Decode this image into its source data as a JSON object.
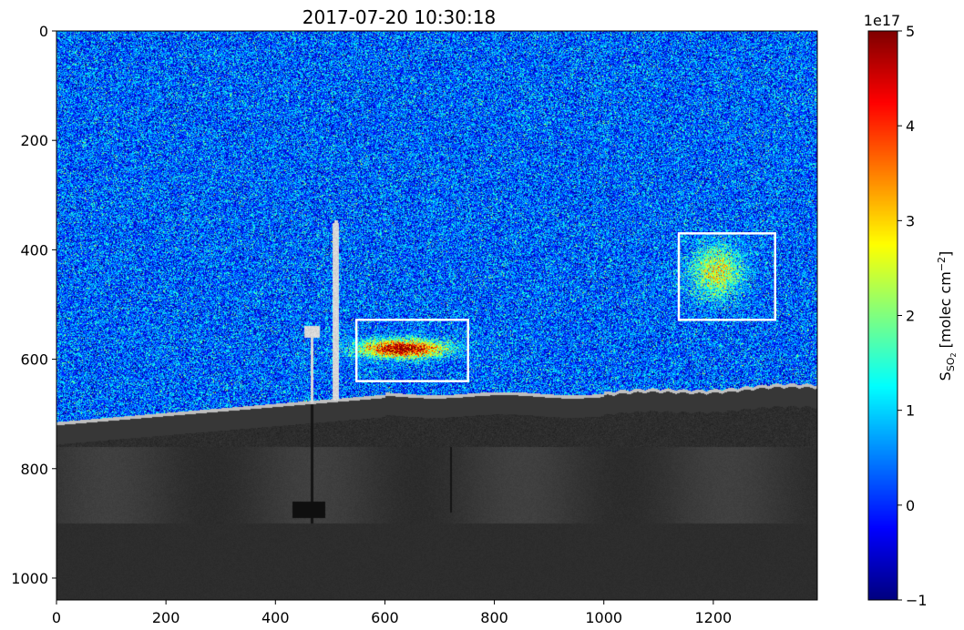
{
  "chart_data": {
    "type": "heatmap",
    "title": "2017-07-20 10:30:18",
    "xlim": [
      0,
      1390
    ],
    "ylim": [
      1040,
      0
    ],
    "xticks": [
      0,
      200,
      400,
      600,
      800,
      1000,
      1200
    ],
    "yticks": [
      0,
      200,
      400,
      600,
      800,
      1000
    ],
    "xlabel": "",
    "ylabel": "",
    "grid": false,
    "colormap": "jet",
    "colorbar": {
      "range": [
        -1,
        5
      ],
      "ticks": [
        -1,
        0,
        1,
        2,
        3,
        4,
        5
      ],
      "tick_labels": [
        "−1",
        "0",
        "1",
        "2",
        "3",
        "4",
        "5"
      ],
      "offset_label": "1e17",
      "label_main": "S",
      "label_sub": "SO",
      "label_sub2": "2",
      "label_unit": " [molec cm",
      "label_exp": "−2",
      "label_end": "]"
    },
    "annotations": [
      {
        "type": "rectangle",
        "color": "#ffffff",
        "x": [
          548,
          752
        ],
        "y": [
          528,
          640
        ]
      },
      {
        "type": "rectangle",
        "color": "#ffffff",
        "x": [
          1137,
          1313
        ],
        "y": [
          370,
          528
        ]
      }
    ],
    "plumes": [
      {
        "center": [
          630,
          580
        ],
        "peak": 5.2
      },
      {
        "center": [
          1205,
          440
        ],
        "peak": 2.6
      }
    ],
    "background_mean": 0.3,
    "background_noise_sd": 0.75
  }
}
